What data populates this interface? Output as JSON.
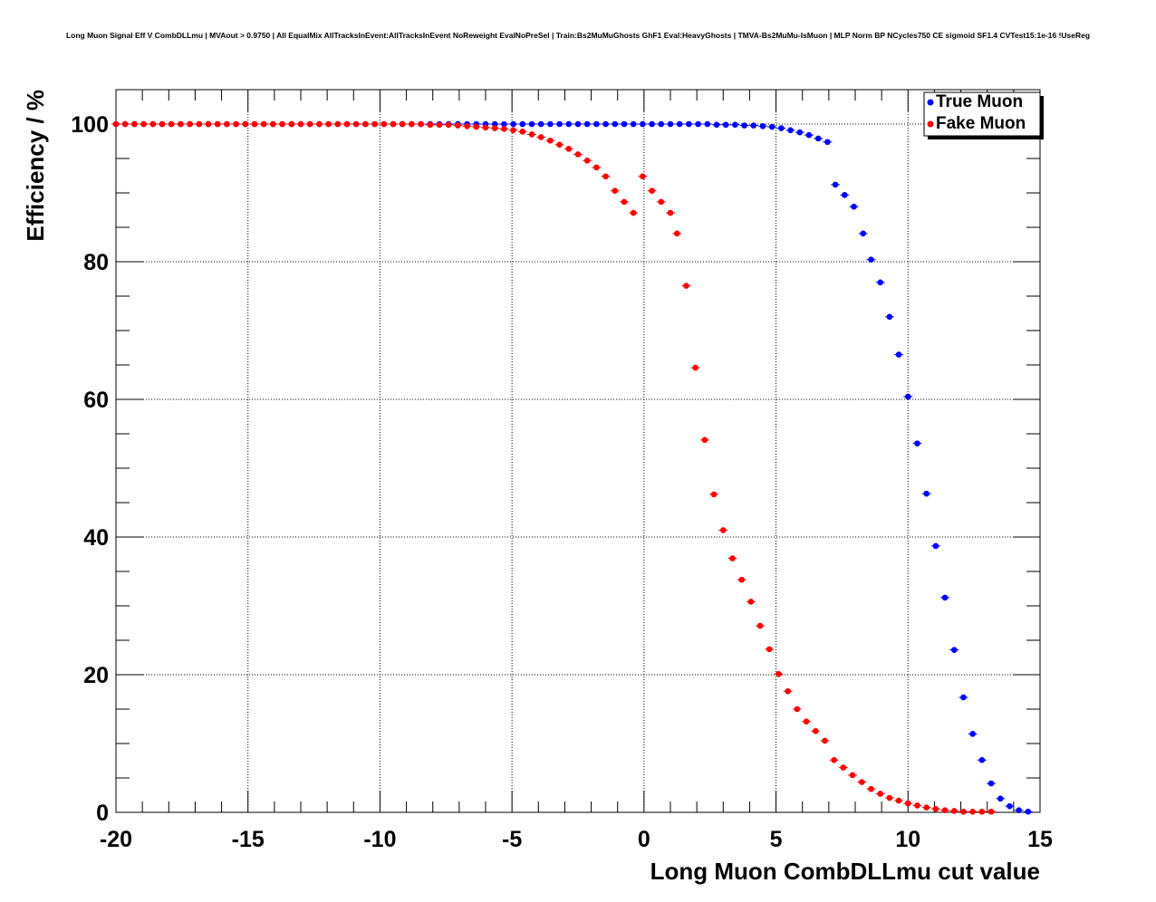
{
  "chart_data": {
    "type": "scatter",
    "title": "Long Muon Signal Eff V CombDLLmu | MVAout > 0.9750 | All EqualMix AllTracksInEvent:AllTracksInEvent NoReweight EvalNoPreSel | Train:Bs2MuMuGhosts GhF1 Eval:HeavyGhosts | TMVA-Bs2MuMu-IsMuon | MLP Norm BP NCycles750 CE sigmoid SF1.4 CVTest15:1e-16 !UseReg",
    "xlabel": "Long Muon CombDLLmu cut value",
    "ylabel": "Efficiency / %",
    "xlim": [
      -20,
      15
    ],
    "ylim": [
      0,
      105
    ],
    "xticks": [
      -20,
      -15,
      -10,
      -5,
      0,
      5,
      10,
      15
    ],
    "yticks": [
      0,
      20,
      40,
      60,
      80,
      100
    ],
    "grid": true,
    "legend_position": "top-right",
    "series": [
      {
        "name": "True Muon",
        "color": "#0000ff",
        "x": [
          -20.0,
          -19.65,
          -19.3,
          -18.95,
          -18.6,
          -18.25,
          -17.9,
          -17.55,
          -17.2,
          -16.85,
          -16.5,
          -16.15,
          -15.8,
          -15.45,
          -15.1,
          -14.75,
          -14.4,
          -14.05,
          -13.7,
          -13.35,
          -13.0,
          -12.65,
          -12.3,
          -11.95,
          -11.6,
          -11.25,
          -10.9,
          -10.55,
          -10.2,
          -9.85,
          -9.5,
          -9.15,
          -8.8,
          -8.45,
          -8.1,
          -7.75,
          -7.4,
          -7.05,
          -6.7,
          -6.35,
          -6.0,
          -5.65,
          -5.3,
          -4.95,
          -4.6,
          -4.25,
          -3.9,
          -3.55,
          -3.2,
          -2.85,
          -2.5,
          -2.15,
          -1.8,
          -1.45,
          -1.1,
          -0.75,
          -0.4,
          -0.05,
          0.3,
          0.65,
          1.0,
          1.35,
          1.7,
          2.05,
          2.4,
          2.75,
          3.1,
          3.45,
          3.8,
          4.15,
          4.5,
          4.85,
          5.2,
          5.55,
          5.9,
          6.25,
          6.6,
          6.95,
          7.25,
          7.6,
          7.95,
          8.3,
          8.6,
          8.95,
          9.3,
          9.65,
          10.0,
          10.35,
          10.7,
          11.05,
          11.4,
          11.75,
          12.1,
          12.45,
          12.8,
          13.15,
          13.5,
          13.85,
          14.2,
          14.55
        ],
        "y": [
          100,
          100,
          100,
          100,
          100,
          100,
          100,
          100,
          100,
          100,
          100,
          100,
          100,
          100,
          100,
          100,
          100,
          100,
          100,
          100,
          100,
          100,
          100,
          100,
          100,
          100,
          100,
          100,
          100,
          100,
          100,
          100,
          100,
          100,
          100,
          100,
          100,
          100,
          100,
          100,
          100,
          100,
          100,
          100,
          100,
          100,
          100,
          100,
          100,
          100,
          100,
          100,
          100,
          100,
          100,
          100,
          100,
          100,
          100,
          100,
          100,
          100,
          100,
          100,
          100,
          99.9,
          99.9,
          99.9,
          99.8,
          99.8,
          99.7,
          99.6,
          99.4,
          99.1,
          98.8,
          98.4,
          97.9,
          97.4,
          91.2,
          89.7,
          88.0,
          84.1,
          80.3,
          77.0,
          72.0,
          66.5,
          60.4,
          53.6,
          46.3,
          38.7,
          31.2,
          23.6,
          16.7,
          11.4,
          7.6,
          4.2,
          2.0,
          0.9,
          0.3,
          0.1
        ]
      },
      {
        "name": "Fake Muon",
        "color": "#ff0000",
        "x": [
          -20.0,
          -19.65,
          -19.3,
          -18.95,
          -18.6,
          -18.25,
          -17.9,
          -17.55,
          -17.2,
          -16.85,
          -16.5,
          -16.15,
          -15.8,
          -15.45,
          -15.1,
          -14.75,
          -14.4,
          -14.05,
          -13.7,
          -13.35,
          -13.0,
          -12.65,
          -12.3,
          -11.95,
          -11.6,
          -11.25,
          -10.9,
          -10.55,
          -10.2,
          -9.85,
          -9.5,
          -9.15,
          -8.8,
          -8.45,
          -8.1,
          -7.75,
          -7.4,
          -7.05,
          -6.7,
          -6.35,
          -6.0,
          -5.65,
          -5.3,
          -4.95,
          -4.6,
          -4.25,
          -3.9,
          -3.55,
          -3.2,
          -2.85,
          -2.5,
          -2.15,
          -1.8,
          -1.45,
          -1.1,
          -0.75,
          -0.4,
          -0.05,
          0.3,
          0.65,
          1.0,
          1.25,
          1.6,
          1.95,
          2.3,
          2.65,
          3.0,
          3.35,
          3.7,
          4.05,
          4.4,
          4.75,
          5.1,
          5.45,
          5.8,
          6.15,
          6.5,
          6.85,
          7.2,
          7.55,
          7.9,
          8.25,
          8.6,
          8.95,
          9.3,
          9.65,
          10.0,
          10.35,
          10.7,
          11.05,
          11.4,
          11.75,
          12.1,
          12.45,
          12.8,
          13.15
        ],
        "y": [
          100,
          100,
          100,
          100,
          100,
          100,
          100,
          100,
          100,
          100,
          100,
          100,
          100,
          100,
          100,
          100,
          100,
          100,
          100,
          100,
          100,
          100,
          100,
          100,
          100,
          100,
          100,
          100,
          100,
          100,
          100,
          100,
          100,
          100,
          99.9,
          99.9,
          99.9,
          99.8,
          99.7,
          99.6,
          99.5,
          99.4,
          99.3,
          99.1,
          98.9,
          98.5,
          98.1,
          97.6,
          97.0,
          96.4,
          95.6,
          94.7,
          93.7,
          92.4,
          90.3,
          88.7,
          87.1,
          92.4,
          90.3,
          88.7,
          87.1,
          84.1,
          76.5,
          64.6,
          54.1,
          46.2,
          41.0,
          36.9,
          33.8,
          30.6,
          27.1,
          23.7,
          20.1,
          17.6,
          15.0,
          13.2,
          11.8,
          10.4,
          7.6,
          6.5,
          5.4,
          4.4,
          3.4,
          2.7,
          2.1,
          1.7,
          1.3,
          1.0,
          0.7,
          0.5,
          0.3,
          0.2,
          0.1,
          0.1,
          0.1,
          0.1
        ]
      }
    ]
  }
}
